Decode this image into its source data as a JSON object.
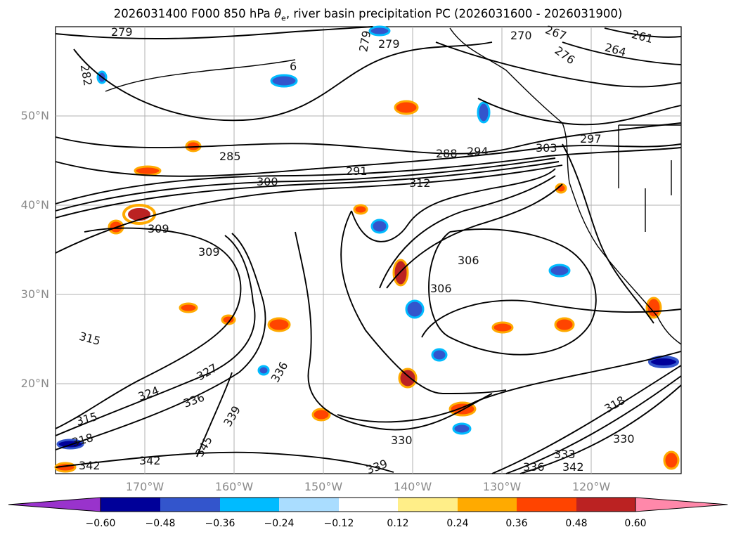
{
  "title": {
    "prefix": "2026031400 F000 850 hPa ",
    "symbol": "θ",
    "subscript": "e",
    "suffix": ", river basin precipitation PC (2026031600 - 2026031900)"
  },
  "axes": {
    "latitude_labels": [
      "50°N",
      "40°N",
      "30°N",
      "20°N"
    ],
    "longitude_labels": [
      "170°W",
      "160°W",
      "150°W",
      "140°W",
      "130°W",
      "120°W"
    ]
  },
  "colorbar": {
    "tick_labels": [
      "−0.60",
      "−0.48",
      "−0.36",
      "−0.24",
      "−0.12",
      "0.12",
      "0.24",
      "0.36",
      "0.48",
      "0.60"
    ],
    "colors": [
      "#9933cc",
      "#000099",
      "#3355cc",
      "#00bbff",
      "#aaddff",
      "#ffffff",
      "#ffee88",
      "#ffaa00",
      "#ff4400",
      "#bb2222",
      "#ff88aa"
    ]
  },
  "contour_labels": [
    {
      "text": "279"
    },
    {
      "text": "282"
    },
    {
      "text": "279"
    },
    {
      "text": "279"
    },
    {
      "text": "6"
    },
    {
      "text": "270"
    },
    {
      "text": "267"
    },
    {
      "text": "276"
    },
    {
      "text": "261"
    },
    {
      "text": "264"
    },
    {
      "text": "285"
    },
    {
      "text": "288"
    },
    {
      "text": "294"
    },
    {
      "text": "291"
    },
    {
      "text": "300"
    },
    {
      "text": "297"
    },
    {
      "text": "303"
    },
    {
      "text": "312"
    },
    {
      "text": "309"
    },
    {
      "text": "309"
    },
    {
      "text": "306"
    },
    {
      "text": "306"
    },
    {
      "text": "315"
    },
    {
      "text": "327"
    },
    {
      "text": "336"
    },
    {
      "text": "324"
    },
    {
      "text": "339"
    },
    {
      "text": "336"
    },
    {
      "text": "345"
    },
    {
      "text": "342"
    },
    {
      "text": "342"
    },
    {
      "text": "330"
    },
    {
      "text": "339"
    },
    {
      "text": "330"
    },
    {
      "text": "318"
    },
    {
      "text": "333"
    },
    {
      "text": "336"
    },
    {
      "text": "342"
    },
    {
      "text": "315"
    },
    {
      "text": "318"
    }
  ]
}
